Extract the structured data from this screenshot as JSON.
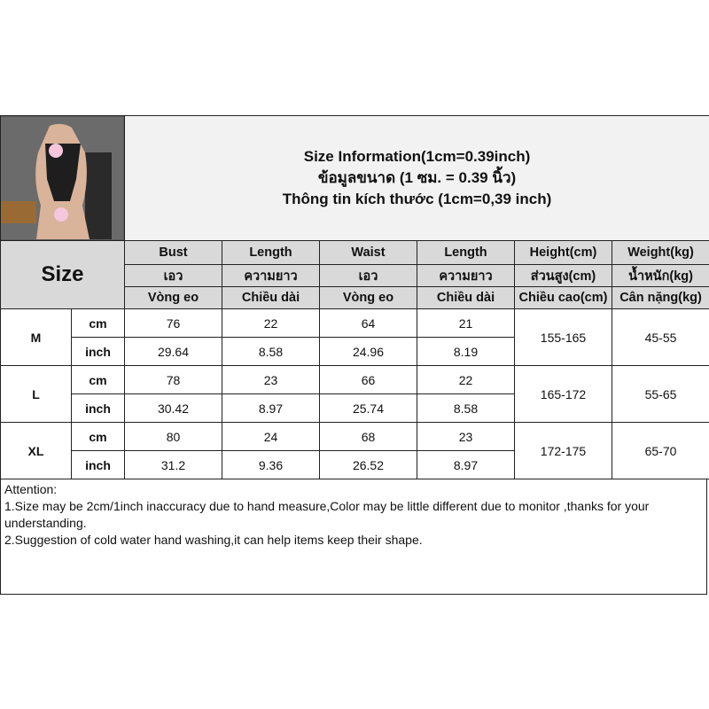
{
  "title": {
    "lines": [
      "Size Information(1cm=0.39inch)",
      "ข้อมูลขนาด (1 ซม. = 0.39 นิ้ว)",
      "Thông tin kích thước (1cm=0,39 inch)"
    ]
  },
  "size_label": "Size",
  "columns": [
    {
      "en": "Bust",
      "th": "เอว",
      "vi": "Vòng eo"
    },
    {
      "en": "Length",
      "th": "ความยาว",
      "vi": "Chiều dài"
    },
    {
      "en": "Waist",
      "th": "เอว",
      "vi": "Vòng eo"
    },
    {
      "en": "Length",
      "th": "ความยาว",
      "vi": "Chiều dài"
    },
    {
      "en": "Height(cm)",
      "th": "ส่วนสูง(cm)",
      "vi": "Chiều cao(cm)"
    },
    {
      "en": "Weight(kg)",
      "th": "น้ำหนัก(kg)",
      "vi": "Cân nặng(kg)"
    }
  ],
  "units": {
    "cm": "cm",
    "inch": "inch"
  },
  "sizes": [
    {
      "size": "M",
      "cm": [
        "76",
        "22",
        "64",
        "21"
      ],
      "inch": [
        "29.64",
        "8.58",
        "24.96",
        "8.19"
      ],
      "height": "155-165",
      "weight": "45-55"
    },
    {
      "size": "L",
      "cm": [
        "78",
        "23",
        "66",
        "22"
      ],
      "inch": [
        "30.42",
        "8.97",
        "25.74",
        "8.58"
      ],
      "height": "165-172",
      "weight": "55-65"
    },
    {
      "size": "XL",
      "cm": [
        "80",
        "24",
        "68",
        "23"
      ],
      "inch": [
        "31.2",
        "9.36",
        "26.52",
        "8.97"
      ],
      "height": "172-175",
      "weight": "65-70"
    }
  ],
  "attention": {
    "heading": "Attention:",
    "lines": [
      "1.Size may be 2cm/1inch inaccuracy due to hand measure,Color may be little different due to monitor ,thanks for your understanding.",
      "2.Suggestion of cold water hand washing,it can help items keep their shape."
    ]
  }
}
